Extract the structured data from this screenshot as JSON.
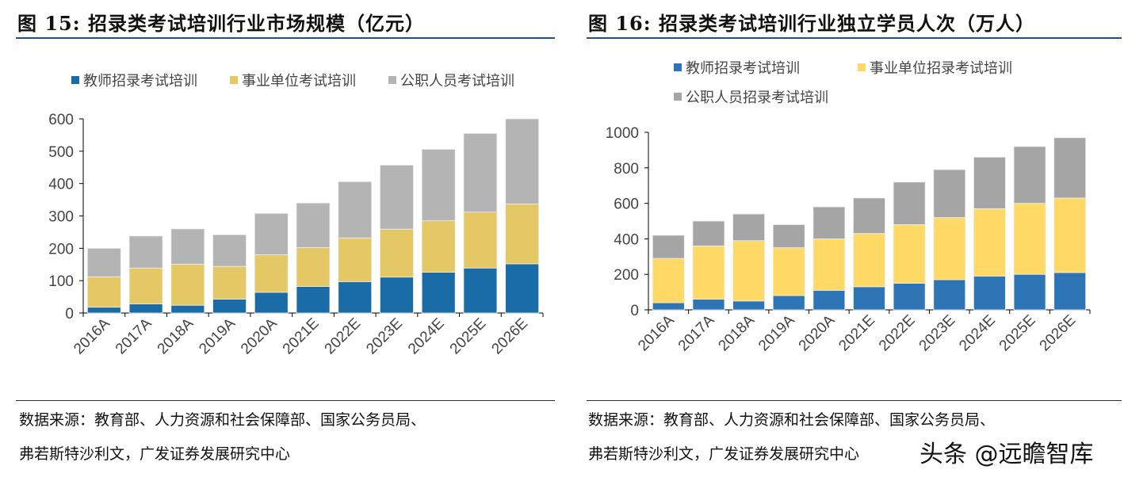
{
  "chart_data": [
    {
      "type": "bar",
      "stacked": true,
      "title": "图 15: 招录类考试培训行业市场规模（亿元）",
      "categories": [
        "2016A",
        "2017A",
        "2018A",
        "2019A",
        "2020A",
        "2021E",
        "2022E",
        "2023E",
        "2024E",
        "2025E",
        "2026E"
      ],
      "ylim": [
        0,
        600
      ],
      "yticks": [
        0,
        100,
        200,
        300,
        400,
        500,
        600
      ],
      "legend": "top",
      "grid": false,
      "series": [
        {
          "name": "教师招录考试培训",
          "color": "#1a6ca6",
          "values": [
            18,
            28,
            24,
            43,
            64,
            82,
            97,
            111,
            126,
            139,
            152
          ]
        },
        {
          "name": "事业单位考试培训",
          "color": "#e4c866",
          "values": [
            94,
            111,
            127,
            101,
            116,
            120,
            135,
            148,
            159,
            173,
            185
          ]
        },
        {
          "name": "公职人员考试培训",
          "color": "#b4b4b4",
          "values": [
            88,
            99,
            109,
            98,
            128,
            138,
            174,
            198,
            221,
            243,
            263
          ]
        }
      ],
      "source": [
        "数据来源：教育部、人力资源和社会保障部、国家公务员局、",
        "弗若斯特沙利文，广发证券发展研究中心"
      ]
    },
    {
      "type": "bar",
      "stacked": true,
      "title": "图 16: 招录类考试培训行业独立学员人次（万人）",
      "categories": [
        "2016A",
        "2017A",
        "2018A",
        "2019A",
        "2020A",
        "2021E",
        "2022E",
        "2023E",
        "2024E",
        "2025E",
        "2026E"
      ],
      "ylim": [
        0,
        1000
      ],
      "yticks": [
        0,
        200,
        400,
        600,
        800,
        1000
      ],
      "legend": "top",
      "grid": false,
      "series": [
        {
          "name": "教师招录考试培训",
          "color": "#2e75b6",
          "values": [
            40,
            60,
            50,
            80,
            110,
            130,
            150,
            170,
            190,
            200,
            210
          ]
        },
        {
          "name": "事业单位招录考试培训",
          "color": "#ffd966",
          "values": [
            250,
            300,
            340,
            270,
            290,
            300,
            330,
            350,
            380,
            400,
            420
          ]
        },
        {
          "name": "公职人员招录考试培训",
          "color": "#a5a5a5",
          "values": [
            130,
            140,
            150,
            130,
            180,
            200,
            240,
            270,
            290,
            320,
            340
          ]
        }
      ],
      "source": [
        "数据来源：教育部、人力资源和社会保障部、国家公务员局、",
        "弗若斯特沙利文，广发证券发展研究中心"
      ]
    }
  ],
  "watermark": "头条 @远瞻智库"
}
